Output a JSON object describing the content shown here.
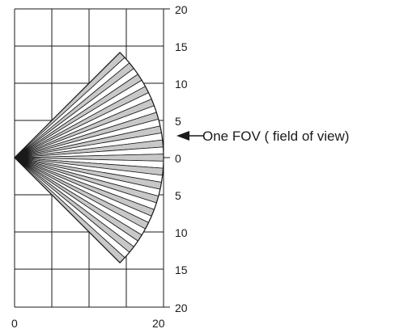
{
  "grid": {
    "right_axis_labels": [
      "20",
      "15",
      "10",
      "5",
      "0",
      "5",
      "10",
      "15",
      "20"
    ],
    "bottom_axis_labels": [
      "0",
      "20"
    ]
  },
  "fov": {
    "range": 20,
    "half_angle_deg": 45,
    "zone_count": 33,
    "fill_color": "#c8c8c8",
    "line_color": "#1a1a1a"
  },
  "annotation": {
    "text": "One FOV ( field of view)"
  }
}
